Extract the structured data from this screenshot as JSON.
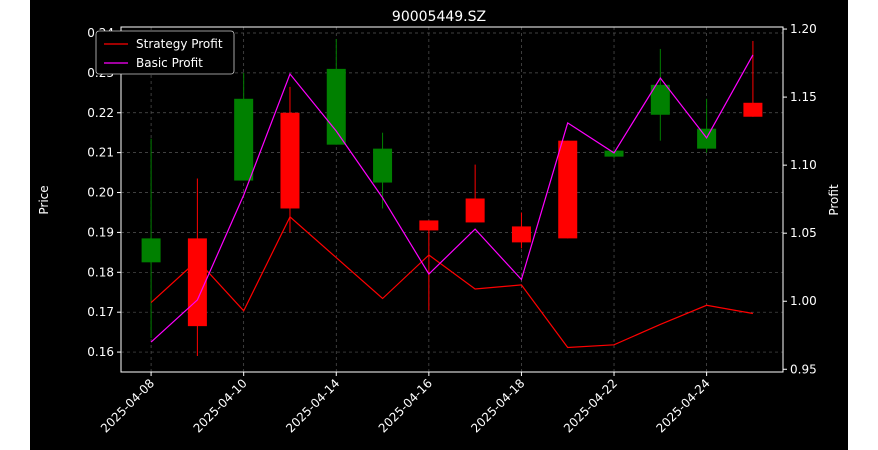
{
  "chart_data": {
    "type": "candlestick",
    "title": "90005449.SZ",
    "ylabel_left": "Price",
    "ylabel_right": "Profit",
    "ylim_left": [
      0.155,
      0.2415
    ],
    "ylim_right": [
      0.948,
      1.2015
    ],
    "yticks_left": [
      "0.16",
      "0.17",
      "0.18",
      "0.19",
      "0.20",
      "0.21",
      "0.22",
      "0.23",
      "0.24"
    ],
    "yticks_right": [
      "0.95",
      "1.00",
      "1.05",
      "1.10",
      "1.15",
      "1.20"
    ],
    "x_tick_labels": [
      "2025-04-08",
      "2025-04-10",
      "2025-04-14",
      "2025-04-16",
      "2025-04-18",
      "2025-04-22",
      "2025-04-24"
    ],
    "grid": true,
    "legend_position": "top-left",
    "colors": {
      "up": "#008000",
      "down": "#ff0000",
      "strategy": "#ff0000",
      "basic": "#ff00ff",
      "background": "#000000",
      "grid": "#555555"
    },
    "candles": [
      {
        "date": "2025-04-08",
        "open": 0.1825,
        "high": 0.2135,
        "low": 0.1635,
        "close": 0.1885
      },
      {
        "date": "2025-04-09",
        "open": 0.1885,
        "high": 0.2035,
        "low": 0.159,
        "close": 0.1665
      },
      {
        "date": "2025-04-10",
        "open": 0.203,
        "high": 0.23,
        "low": 0.203,
        "close": 0.2235
      },
      {
        "date": "2025-04-11",
        "open": 0.22,
        "high": 0.2265,
        "low": 0.19,
        "close": 0.196
      },
      {
        "date": "2025-04-14",
        "open": 0.212,
        "high": 0.2385,
        "low": 0.212,
        "close": 0.231
      },
      {
        "date": "2025-04-15",
        "open": 0.2025,
        "high": 0.215,
        "low": 0.196,
        "close": 0.211
      },
      {
        "date": "2025-04-16",
        "open": 0.193,
        "high": 0.193,
        "low": 0.1705,
        "close": 0.1905
      },
      {
        "date": "2025-04-17",
        "open": 0.1985,
        "high": 0.207,
        "low": 0.1925,
        "close": 0.1925
      },
      {
        "date": "2025-04-18",
        "open": 0.1915,
        "high": 0.195,
        "low": 0.186,
        "close": 0.1875
      },
      {
        "date": "2025-04-21",
        "open": 0.213,
        "high": 0.213,
        "low": 0.1885,
        "close": 0.1885
      },
      {
        "date": "2025-04-22",
        "open": 0.209,
        "high": 0.2105,
        "low": 0.2085,
        "close": 0.2105
      },
      {
        "date": "2025-04-23",
        "open": 0.2195,
        "high": 0.236,
        "low": 0.213,
        "close": 0.227
      },
      {
        "date": "2025-04-24",
        "open": 0.211,
        "high": 0.2235,
        "low": 0.21,
        "close": 0.216
      },
      {
        "date": "2025-04-25",
        "open": 0.2225,
        "high": 0.238,
        "low": 0.219,
        "close": 0.219
      }
    ],
    "series": [
      {
        "name": "Strategy Profit",
        "axis": "right",
        "values": [
          0.999,
          1.03,
          0.993,
          1.062,
          1.032,
          1.002,
          1.034,
          1.009,
          1.012,
          0.966,
          0.968,
          0.983,
          0.997,
          0.991
        ]
      },
      {
        "name": "Basic Profit",
        "axis": "right",
        "values": [
          0.97,
          1.001,
          1.078,
          1.167,
          1.125,
          1.076,
          1.02,
          1.053,
          1.016,
          1.131,
          1.109,
          1.164,
          1.12,
          1.181
        ]
      }
    ]
  }
}
